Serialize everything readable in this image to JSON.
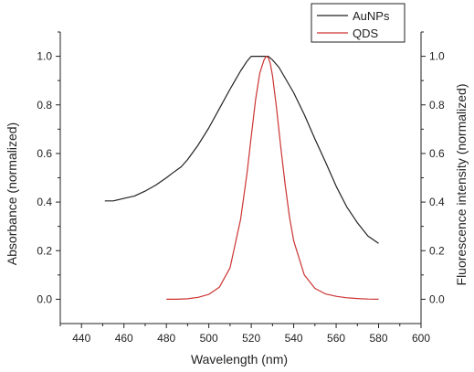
{
  "chart_data": {
    "type": "line",
    "xlabel": "Wavelength (nm)",
    "ylabel_left": "Absorbance (normalized)",
    "ylabel_right": "Fluorescence intensity (normalized)",
    "xlim": [
      430,
      600
    ],
    "ylim": [
      -0.1,
      1.1
    ],
    "x_ticks": [
      "440",
      "460",
      "480",
      "500",
      "520",
      "540",
      "560",
      "580",
      "600"
    ],
    "x_tick_values": [
      440,
      460,
      480,
      500,
      520,
      540,
      560,
      580,
      600
    ],
    "y_ticks": [
      "0.0",
      "0.2",
      "0.4",
      "0.6",
      "0.8",
      "1.0"
    ],
    "y_tick_values": [
      0.0,
      0.2,
      0.4,
      0.6,
      0.8,
      1.0
    ],
    "legend_position": "top-right",
    "series": [
      {
        "name": "AuNPs",
        "axis": "left",
        "color": "#222222",
        "x": [
          451,
          455,
          460,
          465,
          470,
          475,
          480,
          483,
          487,
          490,
          495,
          500,
          505,
          510,
          515,
          518,
          520,
          523,
          526,
          528,
          530,
          533,
          536,
          540,
          545,
          550,
          555,
          560,
          565,
          570,
          575,
          580
        ],
        "y": [
          0.405,
          0.405,
          0.415,
          0.425,
          0.445,
          0.47,
          0.5,
          0.52,
          0.545,
          0.575,
          0.635,
          0.705,
          0.785,
          0.865,
          0.94,
          0.98,
          1.0,
          1.0,
          1.0,
          1.0,
          0.985,
          0.955,
          0.91,
          0.85,
          0.76,
          0.66,
          0.565,
          0.465,
          0.38,
          0.315,
          0.26,
          0.23
        ]
      },
      {
        "name": "QDS",
        "axis": "right",
        "color": "#cc3333",
        "x": [
          480,
          485,
          490,
          495,
          500,
          505,
          510,
          515,
          518,
          520,
          522,
          524,
          526,
          527,
          528,
          529,
          530,
          532,
          534,
          536,
          538,
          540,
          545,
          550,
          555,
          560,
          565,
          570,
          575,
          580
        ],
        "y": [
          0.0,
          0.0,
          0.002,
          0.008,
          0.02,
          0.05,
          0.13,
          0.33,
          0.52,
          0.67,
          0.82,
          0.93,
          0.985,
          1.0,
          0.995,
          0.97,
          0.92,
          0.78,
          0.62,
          0.47,
          0.34,
          0.24,
          0.1,
          0.045,
          0.022,
          0.012,
          0.006,
          0.003,
          0.001,
          0.0
        ]
      }
    ]
  }
}
